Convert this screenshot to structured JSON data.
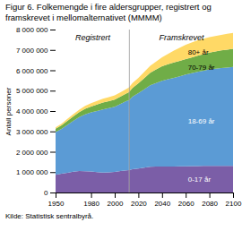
{
  "chart_data": {
    "type": "area",
    "stacked": true,
    "title": "Figur 6. Folkemengde i fire aldersgrupper, registrert og\nframskrevet i mellomalternativet (MMMM)",
    "ylabel": "Antall personer",
    "caption": "Kilde: Statistisk sentralbyrå.",
    "annotations": [
      "Registrert",
      "Framskrevet"
    ],
    "divider_x": 2012,
    "x": [
      1950,
      1955,
      1960,
      1965,
      1970,
      1975,
      1980,
      1985,
      1990,
      1995,
      2000,
      2005,
      2010,
      2012,
      2012,
      2015,
      2020,
      2025,
      2030,
      2035,
      2040,
      2045,
      2050,
      2055,
      2060,
      2065,
      2070,
      2075,
      2080,
      2085,
      2090,
      2095,
      2100
    ],
    "series": [
      {
        "name": "0-17 år",
        "color": "#7b5ea7",
        "values": [
          870000,
          920000,
          970000,
          1020000,
          1050000,
          1040000,
          1030000,
          1000000,
          980000,
          990000,
          1010000,
          1050000,
          1090000,
          1100000,
          1100000,
          1140000,
          1180000,
          1220000,
          1260000,
          1270000,
          1280000,
          1280000,
          1280000,
          1285000,
          1290000,
          1295000,
          1300000,
          1305000,
          1310000,
          1310000,
          1310000,
          1310000,
          1310000
        ]
      },
      {
        "name": "18-69 år",
        "color": "#5b9bd5",
        "values": [
          2100000,
          2200000,
          2350000,
          2500000,
          2650000,
          2800000,
          2900000,
          3000000,
          3100000,
          3150000,
          3200000,
          3300000,
          3400000,
          3430000,
          3430000,
          3560000,
          3700000,
          3850000,
          4000000,
          4100000,
          4200000,
          4275000,
          4350000,
          4420000,
          4500000,
          4560000,
          4620000,
          4675000,
          4730000,
          4765000,
          4800000,
          4825000,
          4850000
        ]
      },
      {
        "name": "70-79 år",
        "color": "#70ad47",
        "values": [
          160000,
          175000,
          195000,
          220000,
          245000,
          270000,
          295000,
          315000,
          335000,
          340000,
          345000,
          360000,
          380000,
          390000,
          390000,
          430000,
          480000,
          550000,
          620000,
          670000,
          720000,
          740000,
          760000,
          760000,
          760000,
          775000,
          790000,
          810000,
          830000,
          850000,
          870000,
          880000,
          890000
        ]
      },
      {
        "name": "80+ år",
        "color": "#ffd966",
        "values": [
          70000,
          80000,
          95000,
          105000,
          120000,
          140000,
          160000,
          175000,
          190000,
          200000,
          210000,
          215000,
          220000,
          230000,
          230000,
          248000,
          270000,
          305000,
          340000,
          390000,
          440000,
          510000,
          580000,
          640000,
          700000,
          730000,
          760000,
          760000,
          760000,
          760000,
          760000,
          775000,
          790000
        ]
      }
    ],
    "xlim": [
      1950,
      2100
    ],
    "xticks": [
      1950,
      1980,
      2000,
      2020,
      2040,
      2060,
      2080,
      2100
    ],
    "ylim": [
      0,
      8000000
    ],
    "yticks": [
      0,
      {
        "value": 1000000,
        "label": "1 000 000"
      },
      {
        "value": 2000000,
        "label": "2 000 000"
      },
      {
        "value": 3000000,
        "label": "3 000 000"
      },
      {
        "value": 4000000,
        "label": "4 000 000"
      },
      {
        "value": 5000000,
        "label": "5 000 000"
      },
      {
        "value": 6000000,
        "label": "6 000 000"
      },
      {
        "value": 7000000,
        "label": "7 000 000"
      },
      {
        "value": 8000000,
        "label": "8 000 000"
      }
    ],
    "grid": false
  }
}
